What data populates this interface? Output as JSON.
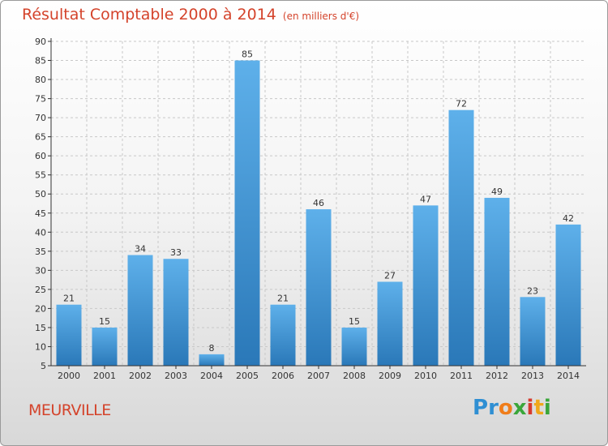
{
  "chart_data": {
    "type": "bar",
    "title": "Résultat Comptable 2000 à 2014",
    "subtitle": "(en milliers d'€)",
    "categories": [
      "2000",
      "2001",
      "2002",
      "2003",
      "2004",
      "2005",
      "2006",
      "2007",
      "2008",
      "2009",
      "2010",
      "2011",
      "2012",
      "2013",
      "2014"
    ],
    "values": [
      21,
      15,
      34,
      33,
      8,
      85,
      21,
      46,
      15,
      27,
      47,
      72,
      49,
      23,
      42
    ],
    "ylim": [
      5,
      90
    ],
    "yticks": [
      5,
      10,
      15,
      20,
      25,
      30,
      35,
      40,
      45,
      50,
      55,
      60,
      65,
      70,
      75,
      80,
      85,
      90
    ],
    "xlabel": "",
    "ylabel": "",
    "grid": "horizontal-dashed",
    "bar_color_top": "#5eb0ea",
    "bar_color_bottom": "#2a78b8"
  },
  "footer": {
    "commune": "MEURVILLE",
    "logo_letters": [
      "P",
      "r",
      "o",
      "x",
      "i",
      "t",
      "i"
    ],
    "logo_colors": [
      "#2f8fd3",
      "#2f8fd3",
      "#f07d1a",
      "#3aa63a",
      "#d63a2e",
      "#f0a81a",
      "#3aa63a"
    ]
  },
  "colors": {
    "title": "#d4432b",
    "axis": "#333333",
    "grid": "#c8c8c8",
    "label": "#333333"
  }
}
